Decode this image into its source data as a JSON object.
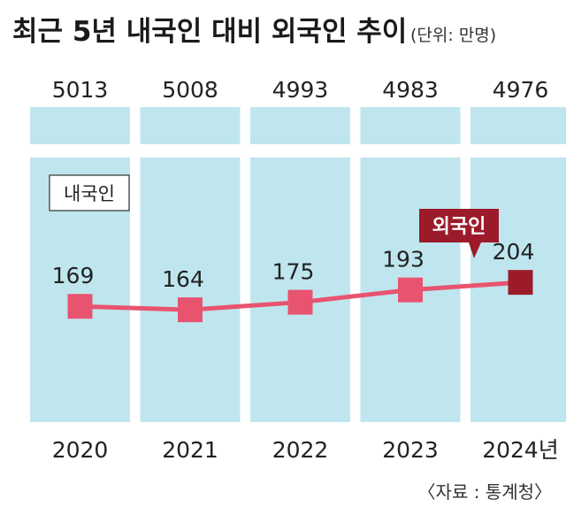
{
  "title": "최근 5년 내국인 대비 외국인 추이",
  "unit": "(단위: 만명)",
  "source": "〈자료 : 통계청〉",
  "chart_data": {
    "type": "bar",
    "categories": [
      "2020",
      "2021",
      "2022",
      "2023",
      "2024년"
    ],
    "series": [
      {
        "name": "내국인",
        "values": [
          5013,
          5008,
          4993,
          4983,
          4976
        ],
        "color": "#bfe6ee"
      },
      {
        "name": "외국인",
        "values": [
          169,
          164,
          175,
          193,
          204
        ],
        "color": "#e85470",
        "last_point_color": "#9b1b2b"
      }
    ],
    "foreign_ylim": [
      0,
      460
    ]
  }
}
